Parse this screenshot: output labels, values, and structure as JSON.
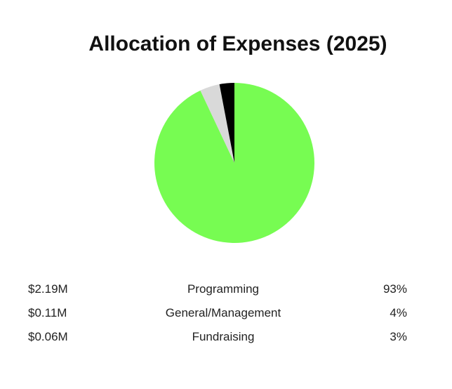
{
  "chart_data": {
    "type": "pie",
    "title": "Allocation of Expenses (2025)",
    "categories": [
      "Programming",
      "General/Management",
      "Fundraising"
    ],
    "values": [
      93,
      4,
      3
    ],
    "amounts": [
      "$2.19M",
      "$0.11M",
      "$0.06M"
    ],
    "percent_labels": [
      "93%",
      "4%",
      "3%"
    ],
    "colors": [
      "#77fc52",
      "#d9d9d9",
      "#000000"
    ],
    "legend": "below"
  }
}
